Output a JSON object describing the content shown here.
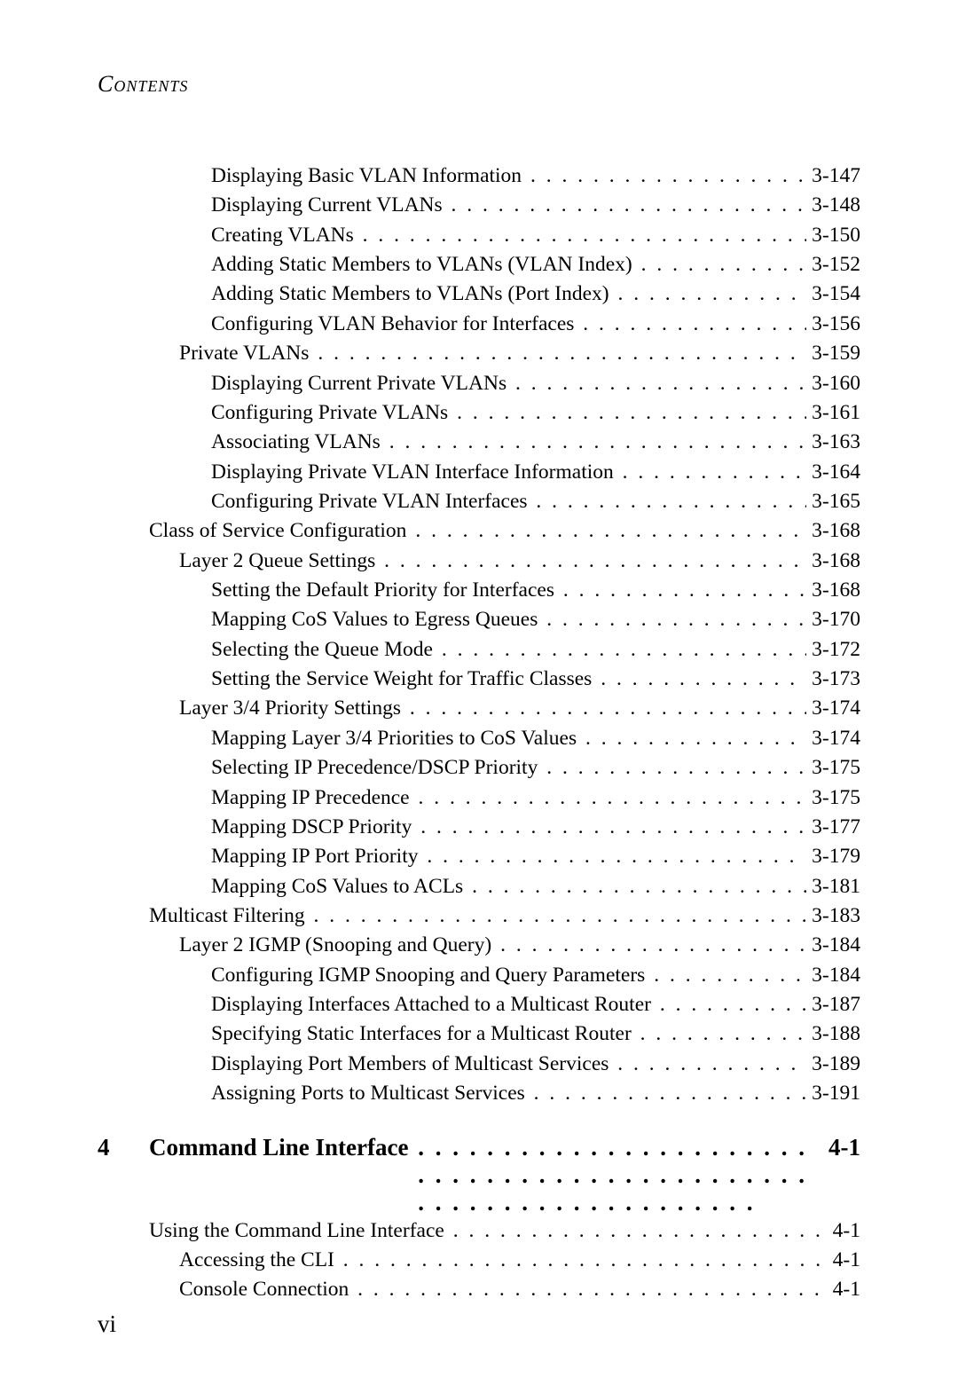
{
  "header": "Contents",
  "page_number": "vi",
  "dots": ". . . . . . . . . . . . . . . . . . . . . . . . . . . . . . . . . . . . . . . . . . . . . . . . . . . . . . . . . . . . . . . . . .",
  "entries": [
    {
      "indent": 2,
      "label": "Displaying Basic VLAN Information",
      "page": "3-147"
    },
    {
      "indent": 2,
      "label": "Displaying Current VLANs",
      "page": "3-148"
    },
    {
      "indent": 2,
      "label": "Creating VLANs",
      "page": "3-150"
    },
    {
      "indent": 2,
      "label": "Adding Static Members to VLANs (VLAN Index)",
      "page": "3-152"
    },
    {
      "indent": 2,
      "label": "Adding Static Members to VLANs (Port Index)",
      "page": "3-154"
    },
    {
      "indent": 2,
      "label": "Configuring VLAN Behavior for Interfaces",
      "page": "3-156"
    },
    {
      "indent": 1,
      "label": "Private VLANs",
      "page": "3-159"
    },
    {
      "indent": 2,
      "label": "Displaying Current Private VLANs",
      "page": "3-160"
    },
    {
      "indent": 2,
      "label": "Configuring Private VLANs",
      "page": "3-161"
    },
    {
      "indent": 2,
      "label": "Associating VLANs",
      "page": "3-163"
    },
    {
      "indent": 2,
      "label": "Displaying Private VLAN Interface Information",
      "page": "3-164"
    },
    {
      "indent": 2,
      "label": "Configuring Private VLAN Interfaces",
      "page": "3-165"
    },
    {
      "indent": 0,
      "label": "Class of Service Configuration",
      "page": "3-168"
    },
    {
      "indent": 1,
      "label": "Layer 2 Queue Settings",
      "page": "3-168"
    },
    {
      "indent": 2,
      "label": "Setting the Default Priority for Interfaces",
      "page": "3-168"
    },
    {
      "indent": 2,
      "label": "Mapping CoS Values to Egress Queues",
      "page": "3-170"
    },
    {
      "indent": 2,
      "label": "Selecting the Queue Mode",
      "page": "3-172"
    },
    {
      "indent": 2,
      "label": "Setting the Service Weight for Traffic Classes",
      "page": "3-173"
    },
    {
      "indent": 1,
      "label": "Layer 3/4 Priority Settings",
      "page": "3-174"
    },
    {
      "indent": 2,
      "label": "Mapping Layer 3/4 Priorities to CoS Values",
      "page": "3-174"
    },
    {
      "indent": 2,
      "label": "Selecting IP Precedence/DSCP Priority",
      "page": "3-175"
    },
    {
      "indent": 2,
      "label": "Mapping IP Precedence",
      "page": "3-175"
    },
    {
      "indent": 2,
      "label": "Mapping DSCP Priority",
      "page": "3-177"
    },
    {
      "indent": 2,
      "label": "Mapping IP Port Priority",
      "page": "3-179"
    },
    {
      "indent": 2,
      "label": "Mapping CoS Values to ACLs",
      "page": "3-181"
    },
    {
      "indent": 0,
      "label": "Multicast Filtering",
      "page": "3-183"
    },
    {
      "indent": 1,
      "label": "Layer 2 IGMP (Snooping and Query)",
      "page": "3-184"
    },
    {
      "indent": 2,
      "label": "Configuring IGMP Snooping and Query Parameters",
      "page": "3-184"
    },
    {
      "indent": 2,
      "label": "Displaying Interfaces Attached to a Multicast Router",
      "page": "3-187"
    },
    {
      "indent": 2,
      "label": "Specifying Static Interfaces for a Multicast Router",
      "page": "3-188"
    },
    {
      "indent": 2,
      "label": "Displaying Port Members of Multicast Services",
      "page": "3-189"
    },
    {
      "indent": 2,
      "label": "Assigning Ports to Multicast Services",
      "page": "3-191"
    }
  ],
  "chapter": {
    "num": "4",
    "title": "Command Line Interface",
    "page": "4-1"
  },
  "chapter_entries": [
    {
      "indent": 0,
      "label": "Using the Command Line Interface",
      "page": "4-1"
    },
    {
      "indent": 1,
      "label": "Accessing the CLI",
      "page": "4-1"
    },
    {
      "indent": 1,
      "label": "Console Connection",
      "page": "4-1"
    }
  ]
}
